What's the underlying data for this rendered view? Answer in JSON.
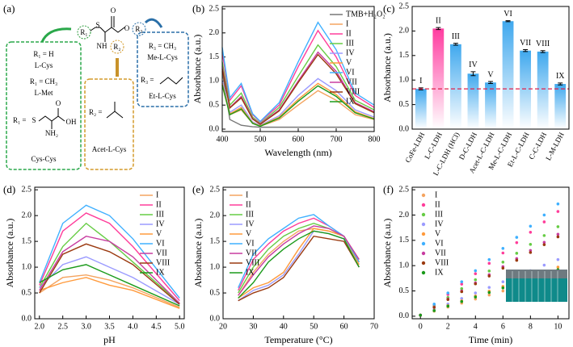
{
  "diagram": {
    "label": "(a)",
    "core": {
      "r1": "R₁",
      "s": "S",
      "nh": "NH",
      "r2": "R₂",
      "o1": "O",
      "o2": "O",
      "r3": "R₃"
    },
    "green": [
      "R₁ = H",
      "L-Cys",
      "R₁ = CH₃",
      "L-Met",
      "R₁ =",
      "Cys-Cys"
    ],
    "green_struct": {
      "s": "S",
      "nh2": "NH₂",
      "oh": "OH",
      "o": "O"
    },
    "orange": [
      "R₂ =",
      "Acet-L-Cys"
    ],
    "blue": [
      "R₃ = CH₃",
      "Me-L-Cys",
      "R₃ =",
      "Et-L-Cys"
    ]
  },
  "chart_data": [
    {
      "type": "line",
      "panel_label": "(b)",
      "x_label": "Wavelength (nm)",
      "y_label": "Absorbance (a.u.)",
      "x": [
        400,
        420,
        450,
        480,
        500,
        550,
        600,
        652,
        700,
        750,
        800
      ],
      "xlim": [
        400,
        800
      ],
      "xticks": [
        400,
        500,
        600,
        700,
        800
      ],
      "ylim": [
        -0.05,
        2.55
      ],
      "yticks": [
        {
          "value": 0,
          "label": "0.0"
        },
        0.5,
        {
          "value": 1,
          "label": "1.0"
        },
        1.5,
        {
          "value": 2,
          "label": "2.0"
        },
        2.5
      ],
      "legend": "upper right",
      "series": [
        {
          "name": "TMB+H₂O₂",
          "color": "#777777",
          "values": [
            1.2,
            0.2,
            0.08,
            0.05,
            0.04,
            0.04,
            0.04,
            0.04,
            0.04,
            0.04,
            0.04
          ]
        },
        {
          "name": "I",
          "color": "#f4a460",
          "values": [
            0.9,
            0.3,
            0.4,
            0.12,
            0.06,
            0.2,
            0.5,
            0.8,
            0.6,
            0.3,
            0.2
          ]
        },
        {
          "name": "II",
          "color": "#ff3d9a",
          "values": [
            1.6,
            0.6,
            0.9,
            0.3,
            0.15,
            0.5,
            1.3,
            2.05,
            1.5,
            0.7,
            0.45
          ]
        },
        {
          "name": "III",
          "color": "#66cc44",
          "values": [
            1.4,
            0.5,
            0.75,
            0.25,
            0.12,
            0.45,
            1.1,
            1.75,
            1.3,
            0.6,
            0.4
          ]
        },
        {
          "name": "IV",
          "color": "#9b9bff",
          "values": [
            1.0,
            0.35,
            0.5,
            0.15,
            0.08,
            0.28,
            0.7,
            1.05,
            0.8,
            0.4,
            0.25
          ]
        },
        {
          "name": "V",
          "color": "#ff9a3c",
          "values": [
            0.95,
            0.32,
            0.45,
            0.13,
            0.07,
            0.25,
            0.62,
            0.95,
            0.72,
            0.36,
            0.22
          ]
        },
        {
          "name": "VI",
          "color": "#3fb0ff",
          "values": [
            1.7,
            0.65,
            0.95,
            0.32,
            0.16,
            0.55,
            1.4,
            2.22,
            1.65,
            0.75,
            0.5
          ]
        },
        {
          "name": "VII",
          "color": "#c83ca0",
          "values": [
            1.3,
            0.45,
            0.68,
            0.22,
            0.11,
            0.4,
            1.0,
            1.6,
            1.2,
            0.55,
            0.36
          ]
        },
        {
          "name": "VIII",
          "color": "#9b3a10",
          "values": [
            1.25,
            0.44,
            0.65,
            0.21,
            0.1,
            0.38,
            0.97,
            1.55,
            1.15,
            0.53,
            0.34
          ]
        },
        {
          "name": "IX",
          "color": "#1a9a1a",
          "values": [
            0.92,
            0.3,
            0.42,
            0.12,
            0.06,
            0.23,
            0.58,
            0.9,
            0.68,
            0.34,
            0.21
          ]
        }
      ]
    },
    {
      "type": "bar",
      "panel_label": "(c)",
      "y_label": "Absorbance (a.u.)",
      "categories": [
        "CoFe-LDH",
        "L-C-LDH",
        "L-C-LDH (HCl)",
        "D-C-LDH",
        "Acet-L-C-LDH",
        "Me-L-C-LDH",
        "Et-L-C-LDH",
        "C-C-LDH",
        "L-M-LDH"
      ],
      "values": [
        0.82,
        2.05,
        1.73,
        1.13,
        0.95,
        2.2,
        1.6,
        1.58,
        0.92
      ],
      "errors": [
        0.02,
        0.02,
        0.02,
        0.04,
        0.02,
        0.01,
        0.02,
        0.02,
        0.02
      ],
      "bar_labels": [
        "I",
        "II",
        "III",
        "IV",
        "V",
        "VI",
        "VII",
        "VIII",
        "IX"
      ],
      "colors": [
        "#3fa8ee",
        "#ff3ca0",
        "#3fa8ee",
        "#3fa8ee",
        "#3fa8ee",
        "#3fa8ee",
        "#3fa8ee",
        "#3fa8ee",
        "#3fa8ee"
      ],
      "reference_line": 0.82,
      "reference_color": "#e0204a",
      "ylim": [
        0,
        2.5
      ],
      "yticks": [
        {
          "value": 0,
          "label": "0.0"
        },
        0.5,
        {
          "value": 1,
          "label": "1.0"
        },
        1.5,
        {
          "value": 2,
          "label": "2.0"
        },
        2.5
      ]
    },
    {
      "type": "line",
      "panel_label": "(d)",
      "x_label": "pH",
      "y_label": "Absorbance (a.u.)",
      "x": [
        2,
        2.5,
        3,
        3.5,
        4,
        5
      ],
      "xlim": [
        1.9,
        5.1
      ],
      "xticks": [
        {
          "value": 2,
          "label": "2.0"
        },
        2.5,
        {
          "value": 3,
          "label": "3.0"
        },
        3.5,
        {
          "value": 4,
          "label": "4.0"
        },
        4.5,
        {
          "value": 5,
          "label": "5.0"
        }
      ],
      "ylim": [
        0,
        2.55
      ],
      "yticks": [
        {
          "value": 0,
          "label": "0.0"
        },
        0.5,
        {
          "value": 1,
          "label": "1.0"
        },
        1.5,
        {
          "value": 2,
          "label": "2.0"
        },
        2.5
      ],
      "legend": "upper right",
      "series": [
        {
          "name": "I",
          "color": "#f4a460",
          "values": [
            0.5,
            0.8,
            0.85,
            0.75,
            0.6,
            0.22
          ]
        },
        {
          "name": "II",
          "color": "#ff3d9a",
          "values": [
            0.65,
            1.7,
            2.05,
            1.85,
            1.4,
            0.35
          ]
        },
        {
          "name": "III",
          "color": "#66cc44",
          "values": [
            0.6,
            1.4,
            1.85,
            1.5,
            1.1,
            0.3
          ]
        },
        {
          "name": "IV",
          "color": "#9b9bff",
          "values": [
            0.6,
            1.05,
            1.2,
            1.0,
            0.8,
            0.28
          ]
        },
        {
          "name": "V",
          "color": "#ff9a3c",
          "values": [
            0.55,
            0.7,
            0.8,
            0.65,
            0.55,
            0.2
          ]
        },
        {
          "name": "VI",
          "color": "#3fb0ff",
          "values": [
            0.7,
            1.85,
            2.2,
            2.0,
            1.55,
            0.4
          ]
        },
        {
          "name": "VII",
          "color": "#c83ca0",
          "values": [
            0.55,
            1.3,
            1.6,
            1.5,
            1.2,
            0.3
          ]
        },
        {
          "name": "VIII",
          "color": "#9b3a10",
          "values": [
            0.5,
            1.25,
            1.45,
            1.3,
            1.05,
            0.28
          ]
        },
        {
          "name": "IX",
          "color": "#1a9a1a",
          "values": [
            0.7,
            0.95,
            1.05,
            0.85,
            0.65,
            0.25
          ]
        }
      ]
    },
    {
      "type": "line",
      "panel_label": "(e)",
      "x_label": "Temperature (°C)",
      "y_label": "Absorbance (a.u.)",
      "x": [
        25,
        30,
        35,
        40,
        45,
        50,
        55,
        60,
        65
      ],
      "xlim": [
        20,
        70
      ],
      "xticks": [
        20,
        30,
        40,
        50,
        60,
        70
      ],
      "ylim": [
        0,
        2.55
      ],
      "yticks": [
        {
          "value": 0,
          "label": "0.0"
        },
        0.5,
        {
          "value": 1,
          "label": "1.0"
        },
        1.5,
        {
          "value": 2,
          "label": "2.0"
        },
        2.5
      ],
      "legend": "upper left",
      "series": [
        {
          "name": "I",
          "color": "#f4a460",
          "values": [
            0.45,
            0.9,
            1.25,
            1.5,
            1.7,
            1.75,
            1.7,
            1.6,
            1.15
          ]
        },
        {
          "name": "II",
          "color": "#ff3d9a",
          "values": [
            0.55,
            1.15,
            1.45,
            1.7,
            1.85,
            1.95,
            1.8,
            1.6,
            1.1
          ]
        },
        {
          "name": "III",
          "color": "#66cc44",
          "values": [
            0.5,
            1.0,
            1.35,
            1.6,
            1.75,
            1.85,
            1.75,
            1.6,
            1.1
          ]
        },
        {
          "name": "IV",
          "color": "#9b9bff",
          "values": [
            0.35,
            0.55,
            0.65,
            0.85,
            1.25,
            1.7,
            1.65,
            1.55,
            1.0
          ]
        },
        {
          "name": "V",
          "color": "#ff9a3c",
          "values": [
            0.4,
            0.6,
            0.7,
            0.9,
            1.35,
            1.75,
            1.7,
            1.6,
            1.05
          ]
        },
        {
          "name": "VI",
          "color": "#3fb0ff",
          "values": [
            0.6,
            1.25,
            1.55,
            1.75,
            1.95,
            2.02,
            1.8,
            1.6,
            1.1
          ]
        },
        {
          "name": "VII",
          "color": "#c83ca0",
          "values": [
            0.45,
            0.85,
            1.2,
            1.45,
            1.65,
            1.8,
            1.75,
            1.6,
            1.15
          ]
        },
        {
          "name": "VIII",
          "color": "#9b3a10",
          "values": [
            0.35,
            0.5,
            0.6,
            0.8,
            1.2,
            1.6,
            1.55,
            1.5,
            1.0
          ]
        },
        {
          "name": "IX",
          "color": "#1a9a1a",
          "values": [
            0.4,
            0.7,
            1.1,
            1.35,
            1.55,
            1.7,
            1.65,
            1.55,
            1.0
          ]
        }
      ]
    },
    {
      "type": "scatter",
      "panel_label": "(f)",
      "x_label": "Time (min)",
      "y_label": "Absorbance (a.u.)",
      "x": [
        0,
        1,
        2,
        3,
        4,
        5,
        6,
        7,
        8,
        9,
        10
      ],
      "xlim": [
        -0.6,
        10.8
      ],
      "xticks": [
        0,
        2,
        4,
        6,
        8,
        10
      ],
      "ylim": [
        -0.05,
        2.55
      ],
      "yticks": [
        {
          "value": 0,
          "label": "0.0"
        },
        0.5,
        {
          "value": 1,
          "label": "1.0"
        },
        1.5,
        {
          "value": 2,
          "label": "2.0"
        },
        2.5
      ],
      "legend": "upper left",
      "series": [
        {
          "name": "I",
          "color": "#f4a460",
          "values": [
            0.02,
            0.1,
            0.18,
            0.26,
            0.34,
            0.42,
            0.5,
            0.58,
            0.66,
            0.74,
            0.82
          ]
        },
        {
          "name": "II",
          "color": "#ff3d9a",
          "values": [
            0.02,
            0.225,
            0.43,
            0.635,
            0.84,
            1.045,
            1.25,
            1.455,
            1.66,
            1.865,
            2.07
          ]
        },
        {
          "name": "III",
          "color": "#66cc44",
          "values": [
            0.02,
            0.195,
            0.37,
            0.545,
            0.72,
            0.895,
            1.07,
            1.245,
            1.42,
            1.595,
            1.77
          ]
        },
        {
          "name": "IV",
          "color": "#9b9bff",
          "values": [
            0.02,
            0.13,
            0.24,
            0.35,
            0.46,
            0.57,
            0.68,
            0.79,
            0.9,
            1.01,
            1.12
          ]
        },
        {
          "name": "V",
          "color": "#ff9a3c",
          "values": [
            0.02,
            0.115,
            0.21,
            0.305,
            0.4,
            0.495,
            0.59,
            0.685,
            0.78,
            0.875,
            0.97
          ]
        },
        {
          "name": "VI",
          "color": "#3fb0ff",
          "values": [
            0.02,
            0.24,
            0.46,
            0.68,
            0.9,
            1.12,
            1.34,
            1.56,
            1.78,
            2.0,
            2.22
          ]
        },
        {
          "name": "VII",
          "color": "#c83ca0",
          "values": [
            0.02,
            0.18,
            0.34,
            0.5,
            0.66,
            0.82,
            0.98,
            1.14,
            1.3,
            1.46,
            1.62
          ]
        },
        {
          "name": "VIII",
          "color": "#9b3a10",
          "values": [
            0.02,
            0.175,
            0.33,
            0.485,
            0.64,
            0.795,
            0.95,
            1.105,
            1.26,
            1.415,
            1.57
          ]
        },
        {
          "name": "IX",
          "color": "#1a9a1a",
          "values": [
            0.02,
            0.11,
            0.2,
            0.29,
            0.38,
            0.47,
            0.56,
            0.65,
            0.74,
            0.83,
            0.92
          ]
        }
      ]
    }
  ]
}
